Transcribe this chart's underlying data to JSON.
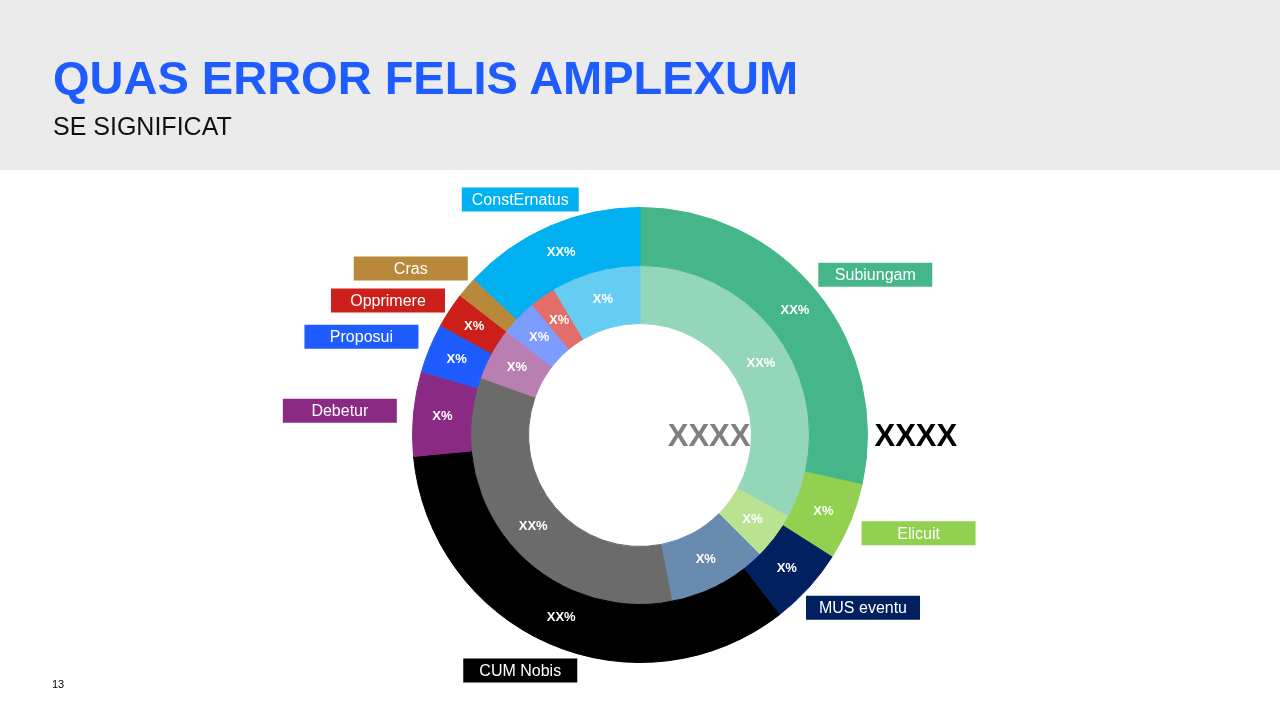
{
  "chart_data": {
    "type": "donut",
    "title": "QUAS ERROR FELIS AMPLEXUM",
    "subtitle": "SE SIGNIFICAT",
    "categories": [
      "Subiungam",
      "Elicuit",
      "MUS eventu",
      "CUM Nobis",
      "Debetur",
      "Proposui",
      "Opprimere",
      "Cras",
      "ConstErnatus"
    ],
    "series": [
      {
        "values": [
          28.5,
          5.5,
          5.5,
          34,
          6,
          3.5,
          2.5,
          1.5,
          13
        ],
        "colors": [
          "#45b68a",
          "#92d050",
          "#002060",
          "#000000",
          "#8a2a84",
          "#1f5cff",
          "#cc1f1a",
          "#b8893b",
          "#00b0f0"
        ],
        "value_labels": [
          "XX%",
          "X%",
          "X%",
          "XX%",
          "X%",
          "X%",
          "X%",
          null,
          "XX%"
        ]
      },
      {
        "values": [
          33,
          4.5,
          9.5,
          33.5,
          5,
          3.5,
          2.5,
          0,
          8.5
        ],
        "colors": [
          "#93d6b9",
          "#b9e291",
          "#6a8bb0",
          "#6b6b6b",
          "#b97fb2",
          "#7c9cff",
          "#e36e69",
          "#d4b27a",
          "#66cdf2"
        ],
        "value_labels": [
          "XX%",
          "X%",
          "X%",
          "XX%",
          "X%",
          "X%",
          "X%",
          null,
          "X%"
        ]
      }
    ],
    "annotations": [
      "XXXX",
      "XXXX",
      "13"
    ]
  }
}
